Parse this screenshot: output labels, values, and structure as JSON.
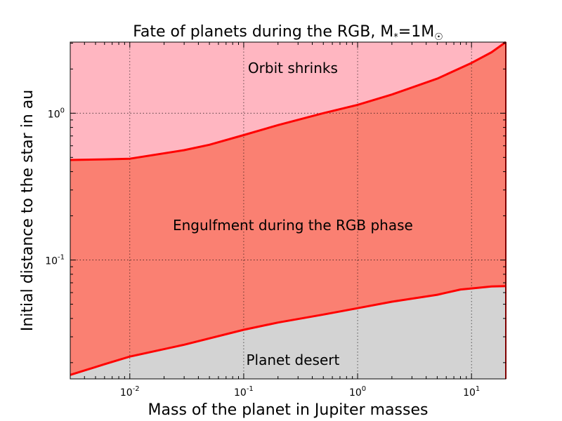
{
  "chart_data": {
    "type": "area",
    "title": "Fate of planets during the RGB, M",
    "title_sub": "*",
    "title_eq": "=1M",
    "title_sun": "☉",
    "xlabel": "Mass of the planet in Jupiter masses",
    "ylabel": "Initial distance to the star in au",
    "x_scale": "log",
    "y_scale": "log",
    "xlim": [
      0.003,
      20
    ],
    "ylim": [
      0.0155,
      3.05
    ],
    "grid": true,
    "x_ticks": [
      {
        "value": 0.01,
        "base": "10",
        "exp": "-2"
      },
      {
        "value": 0.1,
        "base": "10",
        "exp": "-1"
      },
      {
        "value": 1,
        "base": "10",
        "exp": "0"
      },
      {
        "value": 10,
        "base": "10",
        "exp": "1"
      }
    ],
    "y_ticks": [
      {
        "value": 0.1,
        "base": "10",
        "exp": "-1"
      },
      {
        "value": 1,
        "base": "10",
        "exp": "0"
      }
    ],
    "boundaries": [
      {
        "name": "upper",
        "x": [
          0.003,
          0.006,
          0.01,
          0.03,
          0.05,
          0.1,
          0.2,
          0.5,
          1,
          2,
          5,
          10,
          15,
          20
        ],
        "y": [
          0.48,
          0.485,
          0.49,
          0.56,
          0.61,
          0.71,
          0.83,
          1.0,
          1.14,
          1.34,
          1.72,
          2.2,
          2.6,
          3.05
        ]
      },
      {
        "name": "lower",
        "x": [
          0.003,
          0.006,
          0.01,
          0.03,
          0.1,
          0.2,
          0.5,
          1,
          2,
          5,
          8,
          10,
          15,
          20
        ],
        "y": [
          0.0165,
          0.0195,
          0.022,
          0.0265,
          0.0335,
          0.0375,
          0.0425,
          0.047,
          0.052,
          0.058,
          0.063,
          0.064,
          0.066,
          0.0665
        ]
      }
    ],
    "regions": [
      {
        "label": "Orbit shrinks",
        "x": 0.27,
        "y": 2.0,
        "color": "#ffb6c1"
      },
      {
        "label": "Engulfment during the RGB phase",
        "x": 0.27,
        "y": 0.17,
        "color": "#fa8072"
      },
      {
        "label": "Planet desert",
        "x": 0.27,
        "y": 0.0205,
        "color": "#d3d3d3"
      }
    ],
    "line_color": "#ff0000"
  }
}
